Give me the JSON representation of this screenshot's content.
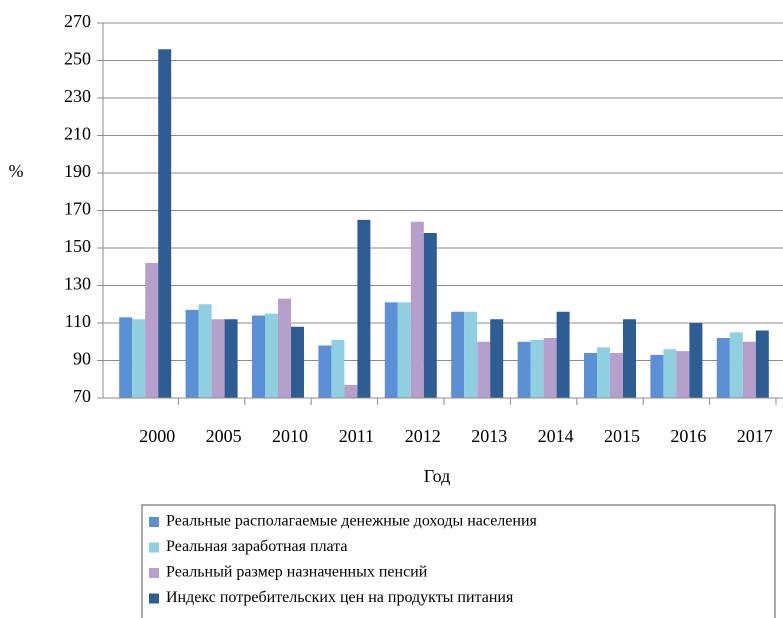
{
  "chart_data": {
    "type": "bar",
    "y_label": "%",
    "x_label": "Год",
    "categories": [
      "2000",
      "2005",
      "2010",
      "2011",
      "2012",
      "2013",
      "2014",
      "2015",
      "2016",
      "2017"
    ],
    "series": [
      {
        "name": "Реальные располагаемые денежные доходы населения",
        "color": "#5b8fd6",
        "values": [
          113,
          117,
          114,
          98,
          121,
          116,
          100,
          94,
          93,
          102
        ]
      },
      {
        "name": "Реальная заработная плата",
        "color": "#8fcfdf",
        "values": [
          112,
          120,
          115,
          101,
          121,
          116,
          101,
          97,
          96,
          105
        ]
      },
      {
        "name": "Реальный размер назначенных пенсий",
        "color": "#b79fcc",
        "values": [
          142,
          112,
          123,
          77,
          164,
          100,
          102,
          94,
          95,
          100
        ]
      },
      {
        "name": "Индекс потребительских цен на продукты питания",
        "color": "#2e5d93",
        "values": [
          256,
          112,
          108,
          165,
          158,
          112,
          116,
          112,
          110,
          106
        ]
      }
    ],
    "ylim": [
      70,
      270
    ],
    "yticks": [
      70,
      90,
      110,
      130,
      150,
      170,
      190,
      210,
      230,
      250,
      270
    ],
    "grid": true
  }
}
